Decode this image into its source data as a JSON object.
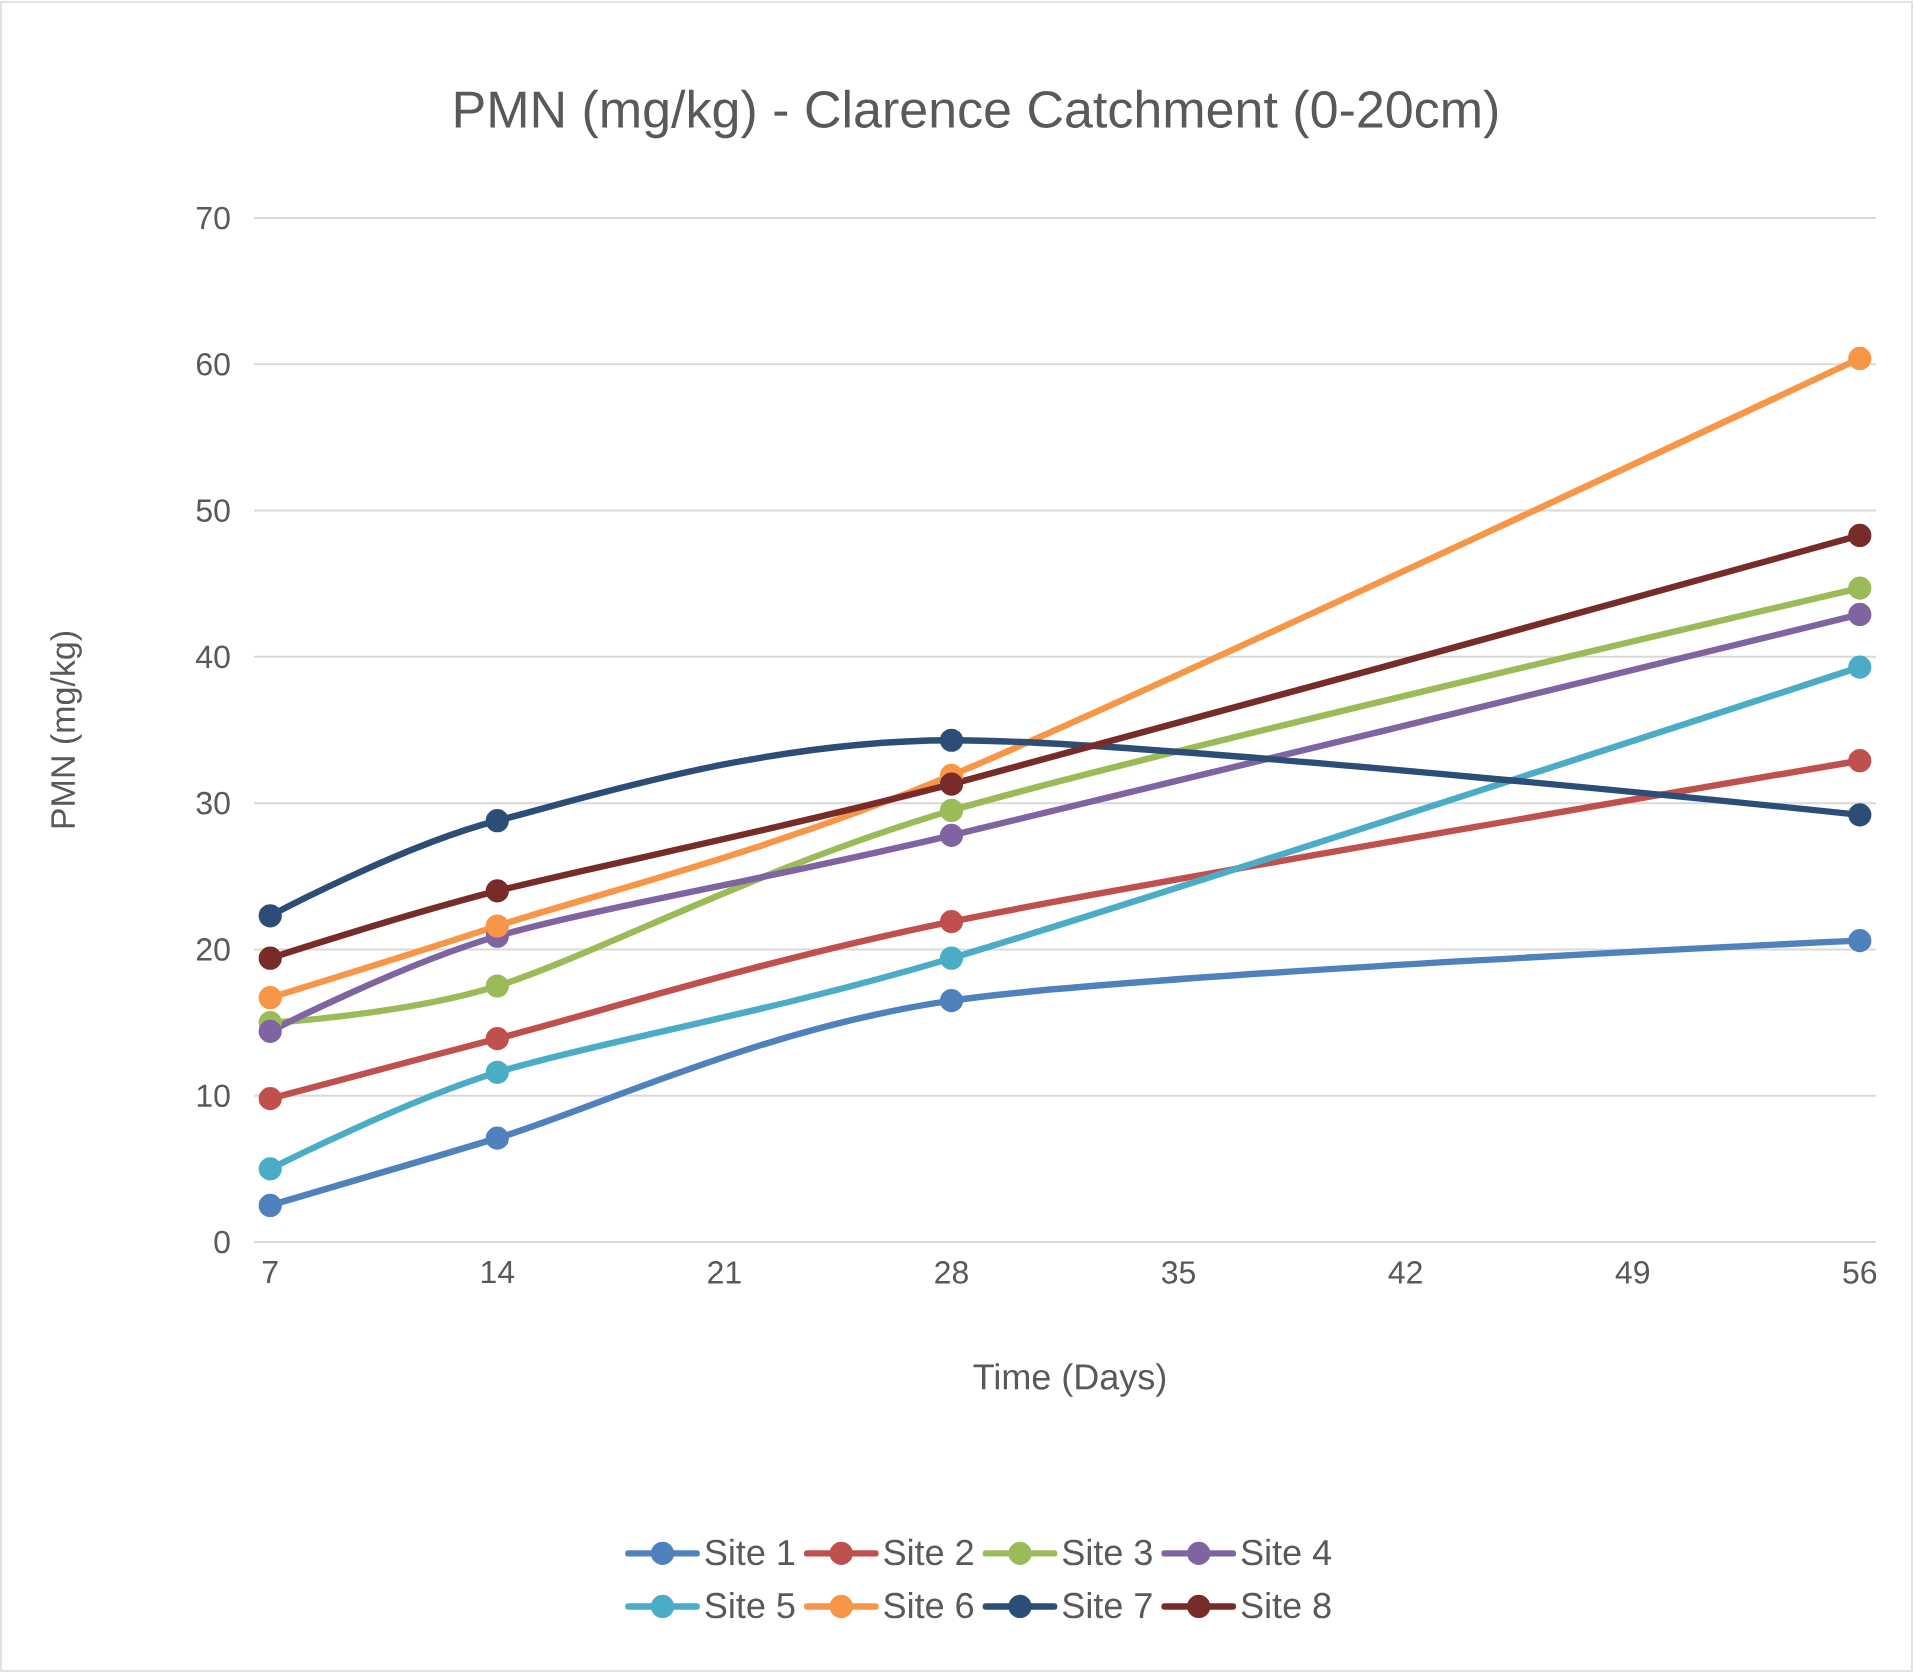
{
  "chart_data": {
    "type": "line",
    "title": "PMN (mg/kg) - Clarence Catchment (0-20cm)",
    "xlabel": "Time (Days)",
    "ylabel": "PMN (mg/kg)",
    "x": [
      7,
      14,
      28,
      56
    ],
    "series": [
      {
        "name": "Site 1",
        "color": "#4f81bd",
        "values": [
          2.5,
          7.1,
          16.5,
          20.6
        ]
      },
      {
        "name": "Site 2",
        "color": "#c0504d",
        "values": [
          9.8,
          13.9,
          21.9,
          32.9
        ]
      },
      {
        "name": "Site 3",
        "color": "#9bbb59",
        "values": [
          15.0,
          17.5,
          29.5,
          44.7
        ]
      },
      {
        "name": "Site 4",
        "color": "#8064a2",
        "values": [
          14.4,
          20.9,
          27.8,
          42.9
        ]
      },
      {
        "name": "Site 5",
        "color": "#4bacc6",
        "values": [
          5.0,
          11.6,
          19.4,
          39.3
        ]
      },
      {
        "name": "Site 6",
        "color": "#f79646",
        "values": [
          16.7,
          21.6,
          31.9,
          60.4
        ]
      },
      {
        "name": "Site 7",
        "color": "#2c4d75",
        "values": [
          22.3,
          28.8,
          34.3,
          29.2
        ]
      },
      {
        "name": "Site 8",
        "color": "#772c2a",
        "values": [
          19.4,
          24.0,
          31.3,
          48.3
        ]
      }
    ],
    "xlim": [
      6.5,
      56.5
    ],
    "xticks": [
      7,
      14,
      21,
      28,
      35,
      42,
      49,
      56
    ],
    "ylim": [
      0,
      70
    ],
    "yticks": [
      0,
      10,
      20,
      30,
      40,
      50,
      60,
      70
    ],
    "grid": "y",
    "legend": "bottom",
    "marker": "circle",
    "line_style": "solid"
  }
}
